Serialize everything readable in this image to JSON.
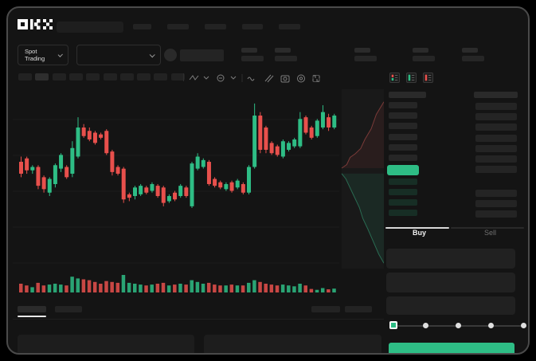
{
  "app": {
    "brand": "OKX"
  },
  "colors": {
    "up": "#2ebd85",
    "down": "#e8504c",
    "accent_button": "#2ebd85"
  },
  "header": {
    "nav_placeholder_count": 5,
    "stat_placeholder_count": 5
  },
  "market_selector": {
    "label": "Spot Trading"
  },
  "toolbar": {
    "timeframe_placeholder_count": 10,
    "active_timeframe_index": 1,
    "icons": [
      "chart-type-icon",
      "chevron-down-icon",
      "indicators-icon",
      "chevron-down-icon",
      "line-style-icon",
      "drawing-tools-icon",
      "camera-icon",
      "settings-icon",
      "fullscreen-icon"
    ]
  },
  "order_book": {
    "view_toggles": [
      "book-combined-view",
      "book-bids-only-view",
      "book-asks-only-view"
    ],
    "ask_rows": [
      {
        "has_amount": true
      },
      {
        "has_amount": true
      },
      {
        "has_amount": true
      },
      {
        "has_amount": true
      },
      {
        "has_amount": true
      },
      {
        "has_amount": true
      },
      {
        "has_amount": true
      }
    ],
    "last_price_direction": "up",
    "bid_rows": [
      {
        "has_amount": false
      },
      {
        "has_amount": true
      },
      {
        "has_amount": true
      },
      {
        "has_amount": true
      }
    ]
  },
  "order_panel": {
    "tabs": [
      {
        "label": "Buy",
        "active": true
      },
      {
        "label": "Sell",
        "active": false
      }
    ],
    "field_count": 3,
    "slider": {
      "positions": [
        0,
        25,
        50,
        75,
        100
      ],
      "value": 0
    },
    "submit_label": ""
  },
  "chart_data": {
    "type": "candlestick",
    "title": "",
    "xlabel": "",
    "ylabel": "",
    "note": "Stylized trading mockup - no numeric axis labels visible; OHLC values are relative units 0-100 read from candle geometry",
    "price_scale": [
      0,
      100
    ],
    "grid": true,
    "candles": [
      [
        60,
        63,
        51,
        53
      ],
      [
        62,
        63,
        53,
        55
      ],
      [
        55,
        58,
        53,
        57
      ],
      [
        57,
        58,
        44,
        46
      ],
      [
        51,
        52,
        42,
        44
      ],
      [
        42,
        51,
        40,
        50
      ],
      [
        47,
        59,
        45,
        58
      ],
      [
        56,
        65,
        54,
        64
      ],
      [
        57,
        58,
        50,
        51
      ],
      [
        53,
        72,
        51,
        68
      ],
      [
        63,
        86,
        62,
        80
      ],
      [
        80,
        82,
        74,
        75
      ],
      [
        78,
        80,
        72,
        73
      ],
      [
        77,
        78,
        70,
        71
      ],
      [
        76,
        77,
        73,
        74
      ],
      [
        78,
        79,
        64,
        65
      ],
      [
        66,
        67,
        52,
        54
      ],
      [
        57,
        58,
        52,
        53
      ],
      [
        56,
        57,
        36,
        38
      ],
      [
        41,
        42,
        37,
        39
      ],
      [
        40,
        46,
        38,
        45
      ],
      [
        41,
        47,
        40,
        46
      ],
      [
        45,
        46,
        41,
        42
      ],
      [
        43,
        48,
        42,
        47
      ],
      [
        46,
        47,
        39,
        40
      ],
      [
        45,
        46,
        34,
        36
      ],
      [
        37,
        41,
        36,
        40
      ],
      [
        42,
        43,
        37,
        38
      ],
      [
        40,
        47,
        39,
        46
      ],
      [
        45,
        46,
        39,
        40
      ],
      [
        34,
        60,
        33,
        59
      ],
      [
        56,
        65,
        55,
        63
      ],
      [
        57,
        62,
        56,
        61
      ],
      [
        60,
        61,
        46,
        47
      ],
      [
        50,
        51,
        45,
        46
      ],
      [
        48,
        49,
        44,
        45
      ],
      [
        44,
        48,
        43,
        47
      ],
      [
        48,
        49,
        42,
        43
      ],
      [
        45,
        50,
        44,
        49
      ],
      [
        47,
        48,
        41,
        42
      ],
      [
        42,
        58,
        41,
        57
      ],
      [
        57,
        94,
        56,
        87
      ],
      [
        87,
        89,
        65,
        67
      ],
      [
        80,
        81,
        65,
        67
      ],
      [
        71,
        72,
        64,
        65
      ],
      [
        69,
        70,
        63,
        64
      ],
      [
        63,
        73,
        62,
        72
      ],
      [
        67,
        72,
        66,
        71
      ],
      [
        69,
        74,
        68,
        73
      ],
      [
        69,
        89,
        68,
        85
      ],
      [
        86,
        87,
        76,
        77
      ],
      [
        80,
        81,
        73,
        74
      ],
      [
        75,
        85,
        74,
        84
      ],
      [
        80,
        93,
        79,
        89
      ],
      [
        86,
        88,
        78,
        80
      ],
      [
        80,
        88,
        79,
        87
      ]
    ],
    "volumes": [
      [
        50,
        "r"
      ],
      [
        40,
        "r"
      ],
      [
        30,
        "g"
      ],
      [
        55,
        "r"
      ],
      [
        40,
        "r"
      ],
      [
        45,
        "g"
      ],
      [
        50,
        "g"
      ],
      [
        45,
        "g"
      ],
      [
        40,
        "r"
      ],
      [
        90,
        "g"
      ],
      [
        80,
        "g"
      ],
      [
        75,
        "r"
      ],
      [
        70,
        "r"
      ],
      [
        60,
        "r"
      ],
      [
        50,
        "r"
      ],
      [
        65,
        "r"
      ],
      [
        60,
        "r"
      ],
      [
        55,
        "r"
      ],
      [
        100,
        "g"
      ],
      [
        55,
        "g"
      ],
      [
        50,
        "g"
      ],
      [
        45,
        "g"
      ],
      [
        40,
        "r"
      ],
      [
        45,
        "g"
      ],
      [
        50,
        "r"
      ],
      [
        55,
        "r"
      ],
      [
        40,
        "g"
      ],
      [
        45,
        "r"
      ],
      [
        50,
        "g"
      ],
      [
        45,
        "r"
      ],
      [
        70,
        "g"
      ],
      [
        60,
        "g"
      ],
      [
        50,
        "g"
      ],
      [
        55,
        "r"
      ],
      [
        45,
        "r"
      ],
      [
        40,
        "r"
      ],
      [
        40,
        "g"
      ],
      [
        45,
        "r"
      ],
      [
        40,
        "g"
      ],
      [
        40,
        "r"
      ],
      [
        55,
        "g"
      ],
      [
        70,
        "g"
      ],
      [
        60,
        "r"
      ],
      [
        50,
        "r"
      ],
      [
        45,
        "r"
      ],
      [
        40,
        "r"
      ],
      [
        45,
        "g"
      ],
      [
        40,
        "g"
      ],
      [
        35,
        "g"
      ],
      [
        50,
        "g"
      ],
      [
        40,
        "r"
      ],
      [
        20,
        "r"
      ],
      [
        15,
        "g"
      ],
      [
        25,
        "g"
      ],
      [
        18,
        "r"
      ],
      [
        22,
        "g"
      ]
    ],
    "depth": {
      "asks_line": [
        [
          0,
          0.44
        ],
        [
          0.12,
          0.42
        ],
        [
          0.2,
          0.38
        ],
        [
          0.32,
          0.36
        ],
        [
          0.45,
          0.33
        ],
        [
          0.55,
          0.28
        ],
        [
          0.7,
          0.22
        ],
        [
          0.82,
          0.14
        ],
        [
          1,
          0.07
        ]
      ],
      "bids_line": [
        [
          0,
          0.47
        ],
        [
          0.1,
          0.5
        ],
        [
          0.2,
          0.55
        ],
        [
          0.3,
          0.6
        ],
        [
          0.42,
          0.66
        ],
        [
          0.5,
          0.72
        ],
        [
          0.62,
          0.78
        ],
        [
          0.75,
          0.85
        ],
        [
          0.88,
          0.92
        ],
        [
          1,
          0.97
        ]
      ]
    }
  }
}
